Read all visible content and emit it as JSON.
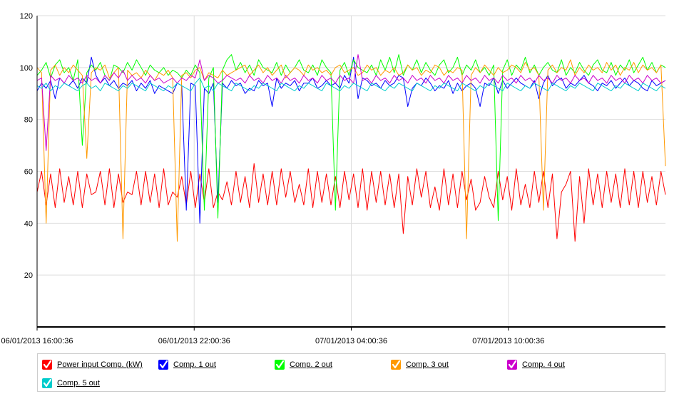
{
  "chart_data": {
    "type": "line",
    "ylim": [
      0,
      120
    ],
    "y_ticks": [
      "20",
      "40",
      "60",
      "80",
      "100",
      "120"
    ],
    "x_tick_labels": [
      "06/01/2013 16:00:36",
      "06/01/2013 22:00:36",
      "07/01/2013 04:00:36",
      "07/01/2013 10:00:36"
    ],
    "x_range_hours": [
      0,
      24
    ],
    "grid": true,
    "legend_position": "bottom",
    "series": [
      {
        "name": "Power input Comp. (kW)",
        "color": "#ff0000",
        "values": [
          52,
          60,
          47,
          59,
          46,
          61,
          48,
          58,
          47,
          60,
          46,
          59,
          51,
          52,
          60,
          47,
          61,
          46,
          59,
          48,
          52,
          51,
          60,
          47,
          60,
          48,
          59,
          46,
          61,
          47,
          52,
          50,
          58,
          47,
          60,
          46,
          59,
          48,
          61,
          46,
          52,
          49,
          56,
          47,
          60,
          48,
          58,
          46,
          63,
          48,
          59,
          47,
          60,
          47,
          61,
          50,
          60,
          48,
          55,
          47,
          61,
          46,
          60,
          48,
          59,
          47,
          58,
          46,
          60,
          49,
          59,
          46,
          61,
          45,
          60,
          48,
          60,
          47,
          59,
          46,
          59,
          36,
          58,
          47,
          61,
          50,
          60,
          46,
          54,
          45,
          61,
          47,
          59,
          46,
          60,
          49,
          57,
          45,
          48,
          58,
          50,
          46,
          60,
          49,
          58,
          45,
          61,
          47,
          55,
          46,
          60,
          48,
          60,
          46,
          59,
          34,
          52,
          55,
          60,
          33,
          58,
          40,
          61,
          47,
          59,
          46,
          60,
          48,
          59,
          46,
          61,
          47,
          60,
          46,
          60,
          48,
          58,
          47,
          60,
          51
        ]
      },
      {
        "name": "Comp. 1 out",
        "color": "#0000ff",
        "values": [
          91,
          94,
          92,
          95,
          88,
          96,
          94,
          93,
          95,
          92,
          96,
          94,
          104,
          97,
          94,
          96,
          93,
          95,
          92,
          94,
          93,
          95,
          91,
          94,
          92,
          95,
          90,
          93,
          92,
          91,
          90,
          94,
          93,
          45,
          94,
          93,
          40,
          92,
          90,
          94,
          48,
          94,
          92,
          95,
          93,
          94,
          90,
          92,
          91,
          95,
          93,
          94,
          85,
          96,
          92,
          94,
          93,
          95,
          91,
          94,
          94,
          96,
          92,
          93,
          95,
          93,
          94,
          92,
          97,
          94,
          104,
          88,
          96,
          95,
          93,
          94,
          92,
          95,
          93,
          94,
          97,
          96,
          85,
          92,
          94,
          93,
          96,
          94,
          91,
          93,
          92,
          95,
          90,
          94,
          91,
          93,
          94,
          92,
          85,
          94,
          93,
          96,
          90,
          95,
          92,
          94,
          96,
          94,
          93,
          92,
          95,
          88,
          94,
          97,
          93,
          95,
          96,
          92,
          94,
          93,
          95,
          97,
          94,
          93,
          91,
          94,
          93,
          95,
          92,
          94,
          96,
          93,
          95,
          94,
          92,
          91,
          95,
          93,
          94,
          95
        ]
      },
      {
        "name": "Comp. 2 out",
        "color": "#00ff00",
        "values": [
          97,
          99,
          102,
          96,
          101,
          103,
          98,
          100,
          95,
          103,
          70,
          98,
          101,
          99,
          102,
          97,
          95,
          101,
          100,
          98,
          102,
          99,
          103,
          100,
          97,
          101,
          99,
          98,
          100,
          97,
          99,
          98,
          96,
          99,
          97,
          101,
          98,
          45,
          96,
          100,
          42,
          99,
          103,
          105,
          99,
          102,
          98,
          101,
          97,
          103,
          100,
          99,
          98,
          102,
          97,
          101,
          98,
          100,
          103,
          99,
          98,
          101,
          97,
          103,
          100,
          98,
          45,
          99,
          102,
          97,
          103,
          100,
          99,
          98,
          101,
          97,
          103,
          99,
          104,
          98,
          105,
          97,
          101,
          99,
          103,
          98,
          102,
          99,
          97,
          101,
          103,
          98,
          100,
          104,
          97,
          101,
          99,
          103,
          98,
          100,
          97,
          101,
          41,
          99,
          103,
          97,
          101,
          99,
          104,
          98,
          101,
          97,
          100,
          102,
          99,
          98,
          103,
          97,
          100,
          98,
          102,
          99,
          97,
          101,
          103,
          99,
          98,
          102,
          97,
          101,
          99,
          103,
          98,
          101,
          104,
          99,
          102,
          98,
          101,
          100
        ]
      },
      {
        "name": "Comp. 3 out",
        "color": "#ff9900",
        "values": [
          100,
          98,
          40,
          99,
          101,
          97,
          100,
          98,
          101,
          99,
          97,
          65,
          98,
          100,
          99,
          101,
          96,
          98,
          100,
          34,
          99,
          97,
          98,
          96,
          99,
          97,
          95,
          98,
          97,
          99,
          96,
          33,
          97,
          98,
          96,
          99,
          100,
          95,
          98,
          97,
          96,
          99,
          97,
          98,
          99,
          100,
          101,
          97,
          99,
          101,
          98,
          100,
          97,
          99,
          101,
          96,
          98,
          100,
          99,
          97,
          101,
          99,
          100,
          98,
          99,
          97,
          100,
          101,
          98,
          99,
          100,
          97,
          98,
          101,
          99,
          100,
          97,
          99,
          98,
          100,
          97,
          98,
          101,
          99,
          100,
          97,
          99,
          98,
          101,
          100,
          97,
          99,
          98,
          100,
          99,
          34,
          97,
          100,
          98,
          101,
          99,
          97,
          100,
          98,
          99,
          101,
          100,
          98,
          102,
          99,
          100,
          97,
          45,
          99,
          101,
          98,
          100,
          99,
          103,
          97,
          100,
          98,
          101,
          99,
          100,
          98,
          102,
          99,
          101,
          97,
          100,
          99,
          102,
          98,
          101,
          99,
          100,
          98,
          101,
          62
        ]
      },
      {
        "name": "Comp. 4 out",
        "color": "#cc00cc",
        "values": [
          95,
          96,
          68,
          97,
          95,
          96,
          94,
          97,
          95,
          96,
          94,
          97,
          95,
          96,
          94,
          97,
          95,
          98,
          96,
          99,
          95,
          97,
          95,
          96,
          94,
          97,
          95,
          96,
          94,
          95,
          96,
          94,
          96,
          95,
          97,
          96,
          103,
          95,
          97,
          96,
          94,
          95,
          97,
          96,
          95,
          96,
          94,
          97,
          95,
          96,
          94,
          97,
          95,
          96,
          94,
          97,
          95,
          96,
          94,
          97,
          95,
          96,
          94,
          97,
          95,
          96,
          94,
          97,
          95,
          96,
          94,
          105,
          95,
          96,
          94,
          97,
          95,
          96,
          94,
          97,
          95,
          96,
          94,
          97,
          95,
          96,
          94,
          97,
          95,
          96,
          94,
          97,
          95,
          96,
          94,
          97,
          95,
          96,
          94,
          97,
          95,
          96,
          94,
          97,
          95,
          96,
          94,
          97,
          95,
          96,
          94,
          97,
          95,
          96,
          94,
          97,
          95,
          96,
          94,
          97,
          95,
          96,
          94,
          97,
          95,
          96,
          94,
          97,
          95,
          96,
          94,
          97,
          95,
          96,
          94,
          97,
          95,
          96,
          94,
          95
        ]
      },
      {
        "name": "Comp. 5 out",
        "color": "#00cccc",
        "values": [
          93,
          92,
          94,
          91,
          93,
          92,
          94,
          93,
          92,
          91,
          93,
          94,
          92,
          93,
          91,
          94,
          93,
          92,
          91,
          93,
          92,
          94,
          93,
          92,
          91,
          94,
          93,
          92,
          91,
          93,
          92,
          94,
          93,
          92,
          91,
          94,
          96,
          92,
          93,
          91,
          94,
          93,
          92,
          91,
          94,
          93,
          92,
          91,
          93,
          92,
          94,
          93,
          92,
          91,
          94,
          93,
          92,
          91,
          93,
          92,
          94,
          93,
          92,
          91,
          94,
          93,
          92,
          91,
          93,
          92,
          94,
          93,
          92,
          91,
          94,
          93,
          92,
          91,
          93,
          92,
          94,
          93,
          92,
          91,
          94,
          93,
          92,
          91,
          93,
          92,
          94,
          93,
          92,
          91,
          94,
          93,
          92,
          91,
          93,
          92,
          94,
          93,
          92,
          91,
          94,
          93,
          92,
          91,
          93,
          92,
          94,
          93,
          92,
          91,
          94,
          93,
          92,
          91,
          93,
          92,
          94,
          93,
          92,
          91,
          94,
          93,
          92,
          91,
          93,
          92,
          94,
          93,
          92,
          91,
          94,
          93,
          92,
          91,
          93,
          92
        ]
      }
    ]
  }
}
